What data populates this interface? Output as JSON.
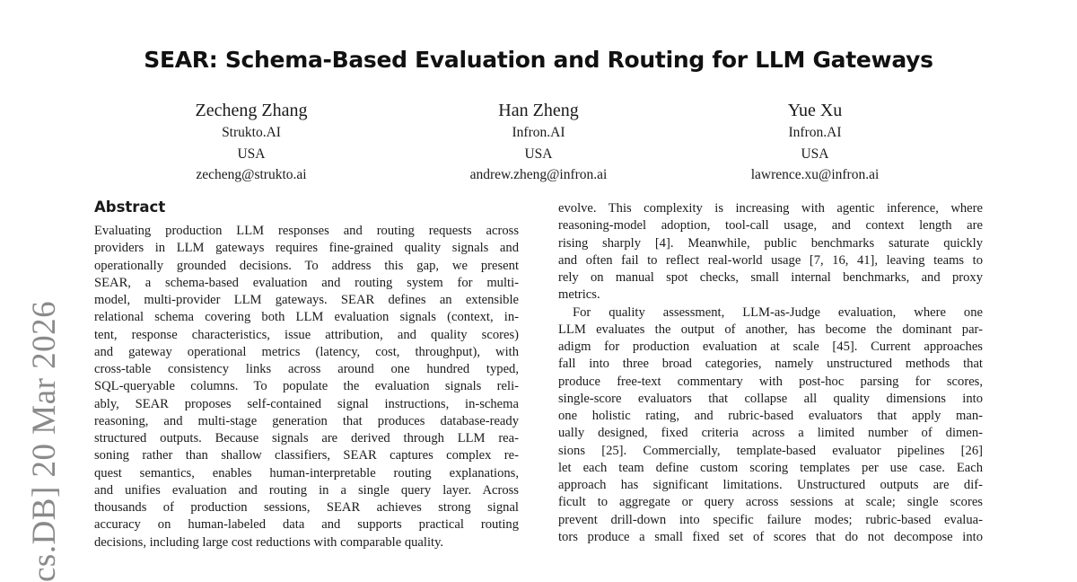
{
  "title": "SEAR: Schema-Based Evaluation and Routing for LLM Gateways",
  "authors": [
    {
      "name": "Zecheng Zhang",
      "affiliation": "Strukto.AI",
      "country": "USA",
      "email": "zecheng@strukto.ai"
    },
    {
      "name": "Han Zheng",
      "affiliation": "Infron.AI",
      "country": "USA",
      "email": "andrew.zheng@infron.ai"
    },
    {
      "name": "Yue Xu",
      "affiliation": "Infron.AI",
      "country": "USA",
      "email": "lawrence.xu@infron.ai"
    }
  ],
  "arxiv_stamp": "cs.DB]  20 Mar 2026",
  "abstract_heading": "Abstract",
  "left_lines": [
    "Evaluating production LLM responses and routing requests across",
    "providers in LLM gateways requires fine-grained quality signals and",
    "operationally grounded decisions. To address this gap, we present",
    "SEAR, a schema-based evaluation and routing system for multi-",
    "model, multi-provider LLM gateways. SEAR defines an extensible",
    "relational schema covering both LLM evaluation signals (context, in-",
    "tent, response characteristics, issue attribution, and quality scores)",
    "and gateway operational metrics (latency, cost, throughput), with",
    "cross-table consistency links across around one hundred typed,",
    "SQL-queryable columns. To populate the evaluation signals reli-",
    "ably, SEAR proposes self-contained signal instructions, in-schema",
    "reasoning, and multi-stage generation that produces database-ready",
    "structured outputs. Because signals are derived through LLM rea-",
    "soning rather than shallow classifiers, SEAR captures complex re-",
    "quest semantics, enables human-interpretable routing explanations,",
    "and unifies evaluation and routing in a single query layer. Across",
    "thousands of production sessions, SEAR achieves strong signal",
    "accuracy on human-labeled data and supports practical routing",
    "decisions, including large cost reductions with comparable quality."
  ],
  "right_lines": [
    "evolve. This complexity is increasing with agentic inference, where",
    "reasoning-model adoption, tool-call usage, and context length are",
    "rising sharply [4]. Meanwhile, public benchmarks saturate quickly",
    "and often fail to reflect real-world usage [7, 16, 41], leaving teams to",
    "rely on manual spot checks, small internal benchmarks, and proxy",
    "metrics.",
    "For quality assessment, LLM-as-Judge evaluation, where one",
    "LLM evaluates the output of another, has become the dominant par-",
    "adigm for production evaluation at scale [45]. Current approaches",
    "fall into three broad categories, namely unstructured methods that",
    "produce free-text commentary with post-hoc parsing for scores,",
    "single-score evaluators that collapse all quality dimensions into",
    "one holistic rating, and rubric-based evaluators that apply man-",
    "ually designed, fixed criteria across a limited number of dimen-",
    "sions [25]. Commercially, template-based evaluator pipelines [26]",
    "let each team define custom scoring templates per use case. Each",
    "approach has significant limitations. Unstructured outputs are dif-",
    "ficult to aggregate or query across sessions at scale; single scores",
    "prevent drill-down into specific failure modes; rubric-based evalua-",
    "tors produce a small fixed set of scores that do not decompose into"
  ]
}
